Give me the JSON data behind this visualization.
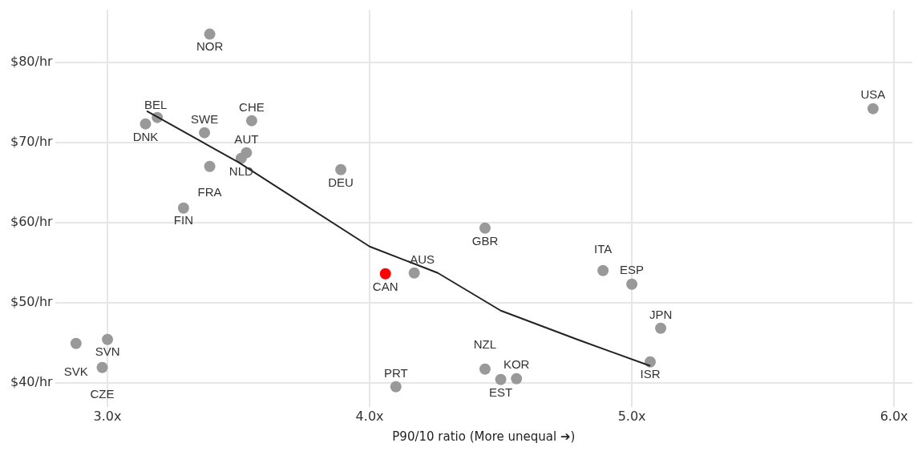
{
  "chart_data": {
    "type": "scatter",
    "xlabel": "P90/10 ratio (More unequal ➔)",
    "xlim": [
      2.8,
      6.07
    ],
    "ylim": [
      37,
      86.5
    ],
    "xticks": [
      {
        "value": 3,
        "label": "3.0x"
      },
      {
        "value": 4,
        "label": "4.0x"
      },
      {
        "value": 5,
        "label": "5.0x"
      },
      {
        "value": 6,
        "label": "6.0x"
      }
    ],
    "yticks": [
      {
        "value": 40,
        "label": "$40/hr"
      },
      {
        "value": 50,
        "label": "$50/hr"
      },
      {
        "value": 60,
        "label": "$60/hr"
      },
      {
        "value": 70,
        "label": "$70/hr"
      },
      {
        "value": 80,
        "label": "$80/hr"
      }
    ],
    "grid": true,
    "legend": false,
    "marker": "circle",
    "series": [
      {
        "color": "#999999",
        "x": [
          3.39,
          3.19,
          3.145,
          3.37,
          3.55,
          3.53,
          3.51,
          3.39,
          3.29,
          3.89,
          4.44,
          4.17,
          4.89,
          5.0,
          5.92,
          5.11,
          5.07,
          4.44,
          4.56,
          4.5,
          4.1,
          3.0,
          2.88,
          2.98
        ],
        "values": [
          83.5,
          73.1,
          72.3,
          71.2,
          72.7,
          68.7,
          68.0,
          67.0,
          61.8,
          66.6,
          59.3,
          53.7,
          54.0,
          52.3,
          74.2,
          46.8,
          42.6,
          41.7,
          40.5,
          40.4,
          39.5,
          45.4,
          44.9,
          41.9
        ]
      },
      {
        "color": "#ff0000",
        "x": [
          4.06
        ],
        "values": [
          53.6
        ]
      },
      {
        "type": "line",
        "marker": "none",
        "color": "#222222",
        "x": [
          3.15,
          3.5,
          4.0,
          4.26,
          4.5,
          4.8,
          5.07
        ],
        "values": [
          73.9,
          67.5,
          57.0,
          53.7,
          49.0,
          45.3,
          42.1
        ]
      }
    ],
    "annotations": [
      {
        "text": "NOR",
        "x": 3.39,
        "y": 83.5
      },
      {
        "text": "BEL",
        "x": 3.19,
        "y": 73.1
      },
      {
        "text": "DNK",
        "x": 3.145,
        "y": 72.3
      },
      {
        "text": "SWE",
        "x": 3.37,
        "y": 71.2
      },
      {
        "text": "CHE",
        "x": 3.55,
        "y": 72.7
      },
      {
        "text": "AUT",
        "x": 3.53,
        "y": 68.7
      },
      {
        "text": "NLD",
        "x": 3.51,
        "y": 68.0
      },
      {
        "text": "FRA",
        "x": 3.39,
        "y": 67.0
      },
      {
        "text": "FIN",
        "x": 3.29,
        "y": 61.8
      },
      {
        "text": "DEU",
        "x": 3.89,
        "y": 66.6
      },
      {
        "text": "GBR",
        "x": 4.44,
        "y": 59.3
      },
      {
        "text": "AUS",
        "x": 4.17,
        "y": 53.7
      },
      {
        "text": "ITA",
        "x": 4.89,
        "y": 54.0
      },
      {
        "text": "ESP",
        "x": 5.0,
        "y": 52.3
      },
      {
        "text": "USA",
        "x": 5.92,
        "y": 74.2
      },
      {
        "text": "JPN",
        "x": 5.11,
        "y": 46.8
      },
      {
        "text": "ISR",
        "x": 5.07,
        "y": 42.6
      },
      {
        "text": "NZL",
        "x": 4.44,
        "y": 41.7
      },
      {
        "text": "KOR",
        "x": 4.56,
        "y": 40.5
      },
      {
        "text": "EST",
        "x": 4.5,
        "y": 40.4
      },
      {
        "text": "PRT",
        "x": 4.1,
        "y": 39.5
      },
      {
        "text": "SVN",
        "x": 3.0,
        "y": 45.4
      },
      {
        "text": "SVK",
        "x": 2.88,
        "y": 44.9
      },
      {
        "text": "CZE",
        "x": 2.98,
        "y": 41.9
      },
      {
        "text": "CAN",
        "x": 4.06,
        "y": 53.6
      }
    ]
  }
}
